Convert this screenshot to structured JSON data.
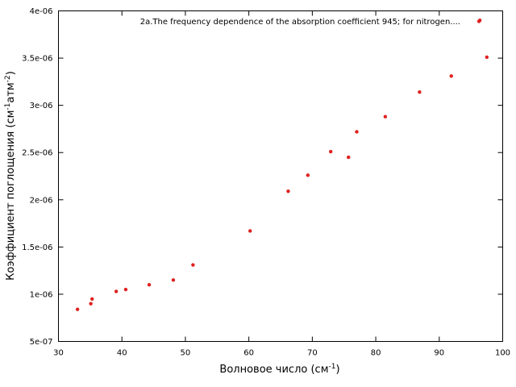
{
  "chart_data": {
    "type": "scatter",
    "xlabel": "Волновое число (см",
    "xlabel_sup": "-1",
    "xlabel_end": ")",
    "ylabel": "Коэффициент поглощения (см",
    "ylabel_sup1": "-1",
    "ylabel_mid": "атм",
    "ylabel_sup2": "-2",
    "ylabel_end": ")",
    "xlim": [
      30,
      100
    ],
    "ylim": [
      5e-07,
      4e-06
    ],
    "xticks": [
      30,
      40,
      50,
      60,
      70,
      80,
      90,
      100
    ],
    "yticks": [
      {
        "value": 5e-07,
        "label": "5e-07"
      },
      {
        "value": 1e-06,
        "label": "1e-06"
      },
      {
        "value": 1.5e-06,
        "label": "1.5e-06"
      },
      {
        "value": 2e-06,
        "label": "2e-06"
      },
      {
        "value": 2.5e-06,
        "label": "2.5e-06"
      },
      {
        "value": 3e-06,
        "label": "3e-06"
      },
      {
        "value": 3.5e-06,
        "label": "3.5e-06"
      },
      {
        "value": 4e-06,
        "label": "4e-06"
      }
    ],
    "grid": false,
    "legend_position": "top-right",
    "series": [
      {
        "name": "2a.The frequency dependence of the absorption coefficient   945; for nitrogen....",
        "color": "#e02020",
        "x": [
          33.0,
          35.1,
          35.3,
          39.1,
          40.6,
          44.3,
          48.1,
          51.2,
          60.2,
          66.2,
          69.3,
          72.9,
          75.7,
          77.0,
          81.5,
          86.9,
          91.9,
          96.4,
          97.5
        ],
        "y": [
          8.4e-07,
          9e-07,
          9.5e-07,
          1.03e-06,
          1.05e-06,
          1.1e-06,
          1.15e-06,
          1.31e-06,
          1.67e-06,
          2.09e-06,
          2.26e-06,
          2.51e-06,
          2.45e-06,
          2.72e-06,
          2.88e-06,
          3.14e-06,
          3.31e-06,
          3.9e-06,
          3.51e-06
        ]
      }
    ]
  }
}
